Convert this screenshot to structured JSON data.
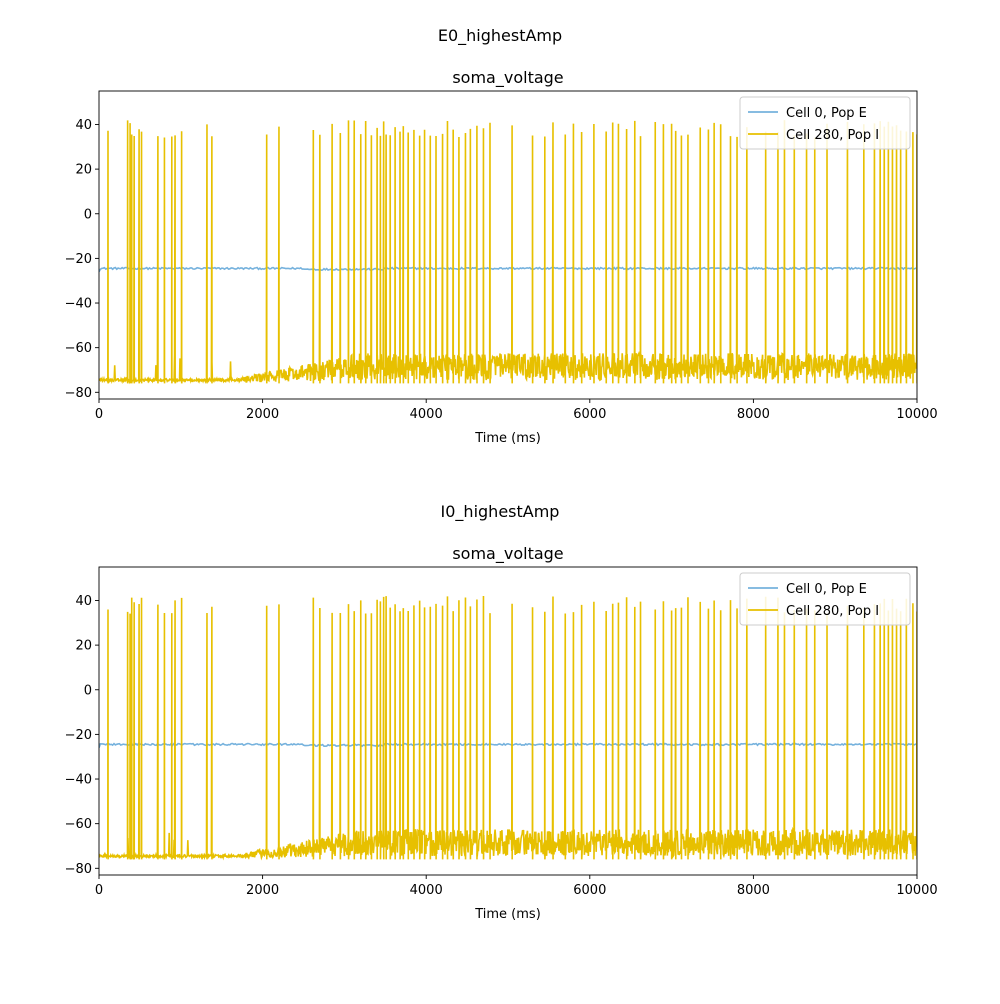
{
  "chart_data": [
    {
      "type": "line",
      "suptitle": "E0_highestAmp",
      "title": "soma_voltage",
      "xlabel": "Time (ms)",
      "ylabel": "",
      "xlim": [
        0,
        10000
      ],
      "ylim": [
        -83,
        55
      ],
      "xticks": [
        0,
        2000,
        4000,
        6000,
        8000,
        10000
      ],
      "yticks": [
        -80,
        -60,
        -40,
        -20,
        0,
        20,
        40
      ],
      "xtick_labels": [
        "0",
        "2000",
        "4000",
        "6000",
        "8000",
        "10000"
      ],
      "ytick_labels": [
        "−80",
        "−60",
        "−40",
        "−20",
        "0",
        "20",
        "40"
      ],
      "grid": false,
      "legend_position": "top-right",
      "series": [
        {
          "name": "Cell 0, Pop E",
          "color": "#76b2dd",
          "kind": "flat",
          "baseline": -24.5,
          "noise": 0.4
        },
        {
          "name": "Cell 280, Pop I",
          "color": "#e7c000",
          "kind": "spiking",
          "rest": -74.5,
          "spike_peak": 38,
          "spike_times": [
            110,
            350,
            380,
            400,
            430,
            490,
            520,
            720,
            800,
            890,
            930,
            1010,
            1320,
            1380,
            2050,
            2200,
            2620,
            2700,
            2850,
            2950,
            3050,
            3120,
            3200,
            3260,
            3330,
            3400,
            3440,
            3480,
            3510,
            3560,
            3620,
            3680,
            3720,
            3780,
            3850,
            3920,
            3980,
            4050,
            4120,
            4200,
            4260,
            4330,
            4400,
            4480,
            4540,
            4620,
            4700,
            4780,
            5050,
            5300,
            5450,
            5550,
            5700,
            5800,
            5900,
            6050,
            6200,
            6280,
            6350,
            6450,
            6550,
            6620,
            6800,
            6900,
            7000,
            7050,
            7120,
            7200,
            7350,
            7450,
            7520,
            7600,
            7720,
            7800,
            7920,
            8150,
            8300,
            8380,
            8500,
            8650,
            8750,
            8900,
            9150,
            9350,
            9480,
            9550,
            9600,
            9650,
            9700,
            9750,
            9800,
            9870,
            9950,
            10000
          ]
        }
      ]
    },
    {
      "type": "line",
      "suptitle": "I0_highestAmp",
      "title": "soma_voltage",
      "xlabel": "Time (ms)",
      "ylabel": "",
      "xlim": [
        0,
        10000
      ],
      "ylim": [
        -83,
        55
      ],
      "xticks": [
        0,
        2000,
        4000,
        6000,
        8000,
        10000
      ],
      "yticks": [
        -80,
        -60,
        -40,
        -20,
        0,
        20,
        40
      ],
      "xtick_labels": [
        "0",
        "2000",
        "4000",
        "6000",
        "8000",
        "10000"
      ],
      "ytick_labels": [
        "−80",
        "−60",
        "−40",
        "−20",
        "0",
        "20",
        "40"
      ],
      "grid": false,
      "legend_position": "top-right",
      "series": [
        {
          "name": "Cell 0, Pop E",
          "color": "#76b2dd",
          "kind": "flat",
          "baseline": -24.5,
          "noise": 0.4
        },
        {
          "name": "Cell 280, Pop I",
          "color": "#e7c000",
          "kind": "spiking",
          "rest": -74.5,
          "spike_peak": 38,
          "spike_times": [
            110,
            350,
            380,
            400,
            430,
            490,
            520,
            720,
            800,
            890,
            930,
            1010,
            1320,
            1380,
            2050,
            2200,
            2620,
            2700,
            2850,
            2950,
            3050,
            3120,
            3200,
            3260,
            3330,
            3400,
            3440,
            3480,
            3510,
            3560,
            3620,
            3680,
            3720,
            3780,
            3850,
            3920,
            3980,
            4050,
            4120,
            4200,
            4260,
            4330,
            4400,
            4480,
            4540,
            4620,
            4700,
            4780,
            5050,
            5300,
            5450,
            5550,
            5700,
            5800,
            5900,
            6050,
            6200,
            6280,
            6350,
            6450,
            6550,
            6620,
            6800,
            6900,
            7000,
            7050,
            7120,
            7200,
            7350,
            7450,
            7520,
            7600,
            7720,
            7800,
            7920,
            8150,
            8300,
            8380,
            8500,
            8650,
            8750,
            8900,
            9150,
            9350,
            9480,
            9550,
            9600,
            9650,
            9700,
            9750,
            9800,
            9870,
            9950,
            10000
          ]
        }
      ]
    }
  ]
}
